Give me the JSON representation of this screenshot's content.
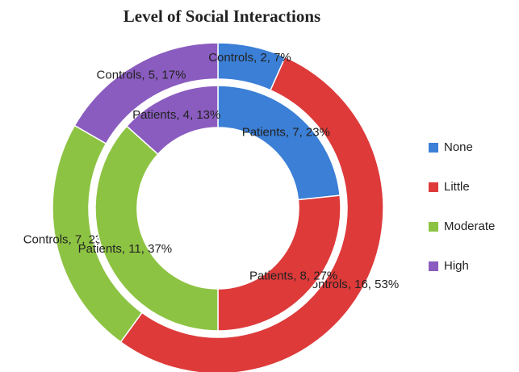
{
  "chart_data": {
    "type": "donut",
    "title": "Level of Social Interactions",
    "categories": [
      "None",
      "Little",
      "Moderate",
      "High"
    ],
    "colors": [
      "#3b7fd6",
      "#de3a3a",
      "#8dc343",
      "#8a5cbf"
    ],
    "series": [
      {
        "name": "Controls",
        "values": [
          2,
          16,
          7,
          5
        ],
        "value_labels": [
          "Controls, 2, 7%",
          "Controls, 16, 53%",
          "Controls, 7, 23%",
          "Controls, 5, 17%"
        ]
      },
      {
        "name": "Patients",
        "values": [
          7,
          8,
          11,
          4
        ],
        "value_labels": [
          "Patients, 7, 23%",
          "Patients, 8, 27%",
          "Patients, 11, 37%",
          "Patients, 4, 13%"
        ]
      }
    ],
    "legend": "right"
  }
}
